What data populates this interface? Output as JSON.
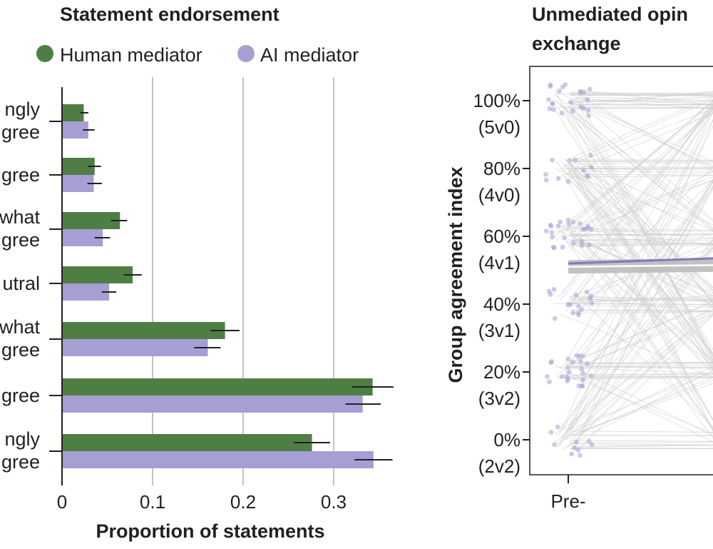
{
  "colors": {
    "human": "#4f7e45",
    "ai": "#a59fd4",
    "grid": "#b0b0b0",
    "axis": "#231f20",
    "gray_line": "#cfcfcf",
    "band": "#b9b9b9",
    "ai_line": "#7c7ac4"
  },
  "chart_data": [
    {
      "type": "bar",
      "orientation": "horizontal",
      "title": "Statement endorsement",
      "xlabel": "Proportion of statements",
      "ylabel": "",
      "xlim": [
        0,
        0.36
      ],
      "xticks": [
        "0",
        "0.1",
        "0.2",
        "0.3"
      ],
      "xtick_values": [
        0,
        0.1,
        0.2,
        0.3
      ],
      "grid": true,
      "legend_position": "top",
      "categories": [
        {
          "line1": "ngly",
          "line2": "gree"
        },
        {
          "line1": "",
          "line2": "gree"
        },
        {
          "line1": "what",
          "line2": "gree"
        },
        {
          "line1": "",
          "line2": "utral"
        },
        {
          "line1": "what",
          "line2": "gree"
        },
        {
          "line1": "",
          "line2": "gree"
        },
        {
          "line1": "ngly",
          "line2": "gree"
        }
      ],
      "series": [
        {
          "name": "Human mediator",
          "values": [
            0.024,
            0.036,
            0.064,
            0.078,
            0.18,
            0.343,
            0.276
          ],
          "err_low": [
            0.02,
            0.029,
            0.054,
            0.068,
            0.164,
            0.32,
            0.256
          ],
          "err_high": [
            0.029,
            0.043,
            0.072,
            0.088,
            0.196,
            0.366,
            0.296
          ]
        },
        {
          "name": "AI mediator",
          "values": [
            0.029,
            0.035,
            0.045,
            0.052,
            0.161,
            0.332,
            0.344
          ],
          "err_low": [
            0.023,
            0.028,
            0.036,
            0.044,
            0.146,
            0.313,
            0.323
          ],
          "err_high": [
            0.036,
            0.044,
            0.053,
            0.06,
            0.175,
            0.352,
            0.365
          ]
        }
      ]
    },
    {
      "type": "line",
      "title_line1": "Unmediated opin",
      "title_line2": "exchange",
      "ylabel": "Group agreement index",
      "xlabel": "",
      "x_categories": [
        "Pre-"
      ],
      "ylim": [
        -0.05,
        1.05
      ],
      "yticks": [
        {
          "value": 1.0,
          "pct": "100%",
          "sub": "(5v0)"
        },
        {
          "value": 0.8,
          "pct": "80%",
          "sub": "(4v0)"
        },
        {
          "value": 0.6,
          "pct": "60%",
          "sub": "(4v1)"
        },
        {
          "value": 0.4,
          "pct": "40%",
          "sub": "(3v1)"
        },
        {
          "value": 0.2,
          "pct": "20%",
          "sub": "(3v2)"
        },
        {
          "value": 0.0,
          "pct": "0%",
          "sub": "(2v2)"
        }
      ],
      "levels": [
        1.0,
        0.8,
        0.6,
        0.4,
        0.2,
        0.0
      ],
      "level_counts": [
        22,
        12,
        24,
        16,
        24,
        10
      ],
      "mean_ai": {
        "pre": 0.52,
        "post": 0.535
      },
      "mean_unmediated": {
        "pre": 0.51,
        "post": 0.515
      },
      "band_halfwidth": 0.02,
      "grid": false
    }
  ]
}
